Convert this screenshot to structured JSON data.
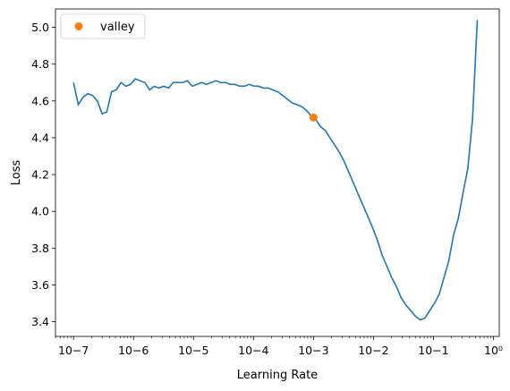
{
  "chart_data": {
    "type": "line",
    "xscale": "log",
    "xlabel": "Learning Rate",
    "ylabel": "Loss",
    "xlim": [
      5e-08,
      1.25
    ],
    "ylim": [
      3.32,
      5.1
    ],
    "grid": false,
    "legend": {
      "placement": "top-left",
      "entries": [
        "valley"
      ]
    },
    "x_tick_labels": [
      "10−7",
      "10−6",
      "10−5",
      "10−4",
      "10−3",
      "10−2",
      "10−1",
      "10⁰"
    ],
    "y_tick_labels": [
      "3.4",
      "3.6",
      "3.8",
      "4.0",
      "4.2",
      "4.4",
      "4.6",
      "4.8",
      "5.0"
    ],
    "y_ticks": [
      3.4,
      3.6,
      3.8,
      4.0,
      4.2,
      4.4,
      4.6,
      4.8,
      5.0
    ],
    "x_ticks": [
      1e-07,
      1e-06,
      1e-05,
      0.0001,
      0.001,
      0.01,
      0.1,
      1
    ],
    "series": [
      {
        "color": "#1f77b4",
        "points": [
          [
            1e-07,
            4.7
          ],
          [
            1.2e-07,
            4.58
          ],
          [
            1.44e-07,
            4.62
          ],
          [
            1.73e-07,
            4.64
          ],
          [
            2.07e-07,
            4.63
          ],
          [
            2.49e-07,
            4.6
          ],
          [
            2.99e-07,
            4.53
          ],
          [
            3.58e-07,
            4.54
          ],
          [
            4.3e-07,
            4.65
          ],
          [
            5.16e-07,
            4.66
          ],
          [
            6.2e-07,
            4.7
          ],
          [
            7.44e-07,
            4.68
          ],
          [
            8.9e-07,
            4.69
          ],
          [
            1.07e-06,
            4.72
          ],
          [
            1.28e-06,
            4.71
          ],
          [
            1.54e-06,
            4.7
          ],
          [
            1.85e-06,
            4.66
          ],
          [
            2.22e-06,
            4.68
          ],
          [
            2.66e-06,
            4.67
          ],
          [
            3.19e-06,
            4.68
          ],
          [
            3.83e-06,
            4.67
          ],
          [
            4.6e-06,
            4.7
          ],
          [
            5.5e-06,
            4.7
          ],
          [
            6.6e-06,
            4.7
          ],
          [
            7.9e-06,
            4.71
          ],
          [
            9.5e-06,
            4.68
          ],
          [
            1.14e-05,
            4.69
          ],
          [
            1.37e-05,
            4.7
          ],
          [
            1.64e-05,
            4.69
          ],
          [
            1.97e-05,
            4.7
          ],
          [
            2.37e-05,
            4.71
          ],
          [
            2.84e-05,
            4.7
          ],
          [
            3.41e-05,
            4.7
          ],
          [
            4.09e-05,
            4.69
          ],
          [
            4.91e-05,
            4.69
          ],
          [
            5.9e-05,
            4.68
          ],
          [
            7.07e-05,
            4.68
          ],
          [
            8.5e-05,
            4.69
          ],
          [
            0.000102,
            4.68
          ],
          [
            0.000122,
            4.68
          ],
          [
            0.000147,
            4.67
          ],
          [
            0.000176,
            4.67
          ],
          [
            0.000211,
            4.66
          ],
          [
            0.000253,
            4.65
          ],
          [
            0.000304,
            4.63
          ],
          [
            0.000365,
            4.61
          ],
          [
            0.000438,
            4.59
          ],
          [
            0.000526,
            4.58
          ],
          [
            0.000631,
            4.57
          ],
          [
            0.000757,
            4.55
          ],
          [
            0.00091,
            4.52
          ],
          [
            0.00109,
            4.5
          ],
          [
            0.00131,
            4.46
          ],
          [
            0.00157,
            4.44
          ],
          [
            0.00188,
            4.4
          ],
          [
            0.00226,
            4.36
          ],
          [
            0.00271,
            4.32
          ],
          [
            0.00326,
            4.27
          ],
          [
            0.00391,
            4.21
          ],
          [
            0.00469,
            4.15
          ],
          [
            0.0056,
            4.09
          ],
          [
            0.00675,
            4.03
          ],
          [
            0.0081,
            3.97
          ],
          [
            0.0097,
            3.91
          ],
          [
            0.0117,
            3.84
          ],
          [
            0.014,
            3.76
          ],
          [
            0.0168,
            3.7
          ],
          [
            0.0201,
            3.64
          ],
          [
            0.0242,
            3.59
          ],
          [
            0.029,
            3.53
          ],
          [
            0.0348,
            3.49
          ],
          [
            0.0418,
            3.46
          ],
          [
            0.05,
            3.43
          ],
          [
            0.06,
            3.41
          ],
          [
            0.072,
            3.42
          ],
          [
            0.0866,
            3.46
          ],
          [
            0.104,
            3.5
          ],
          [
            0.125,
            3.55
          ],
          [
            0.15,
            3.64
          ],
          [
            0.18,
            3.73
          ],
          [
            0.216,
            3.87
          ],
          [
            0.259,
            3.96
          ],
          [
            0.311,
            4.1
          ],
          [
            0.373,
            4.23
          ],
          [
            0.448,
            4.5
          ],
          [
            0.538,
            5.04
          ]
        ]
      }
    ],
    "markers": [
      {
        "label": "valley",
        "x": 0.001,
        "y": 4.51,
        "color": "#ff7f0e"
      }
    ]
  }
}
